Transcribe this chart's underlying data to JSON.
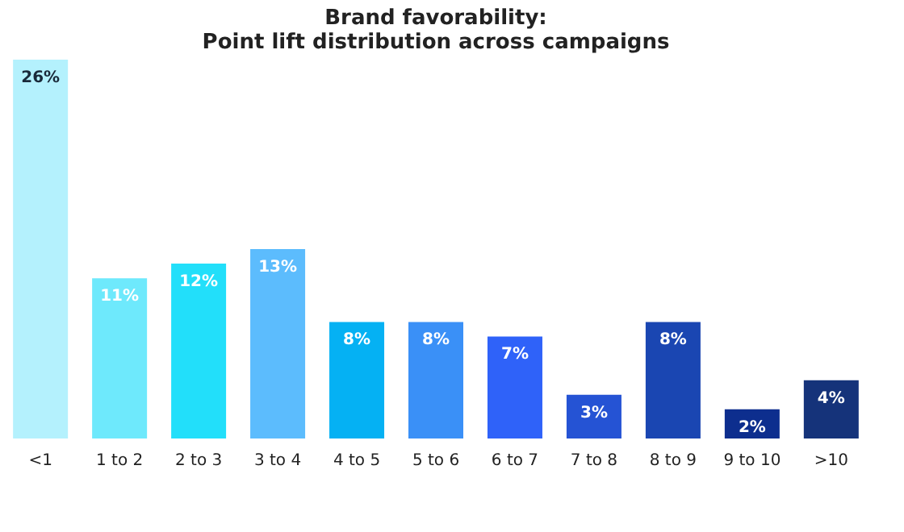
{
  "chart_data": {
    "type": "bar",
    "title": "Brand favorability:\nPoint lift distribution across campaigns",
    "categories": [
      "<1",
      "1 to 2",
      "2 to 3",
      "3 to 4",
      "4 to 5",
      "5 to 6",
      "6 to 7",
      "7 to 8",
      "8 to 9",
      "9 to 10",
      ">10"
    ],
    "values": [
      26,
      11,
      12,
      13,
      8,
      8,
      7,
      3,
      8,
      2,
      4
    ],
    "value_labels": [
      "26%",
      "11%",
      "12%",
      "13%",
      "8%",
      "8%",
      "7%",
      "3%",
      "8%",
      "2%",
      "4%"
    ],
    "colors": [
      "#b4f1fd",
      "#6ee9fc",
      "#22dffa",
      "#5cbcfd",
      "#05b1f3",
      "#3a90f7",
      "#2f62f9",
      "#2553d4",
      "#1a46b2",
      "#0d2e8e",
      "#15337a"
    ],
    "ylim": [
      0,
      26
    ],
    "grid": false
  }
}
